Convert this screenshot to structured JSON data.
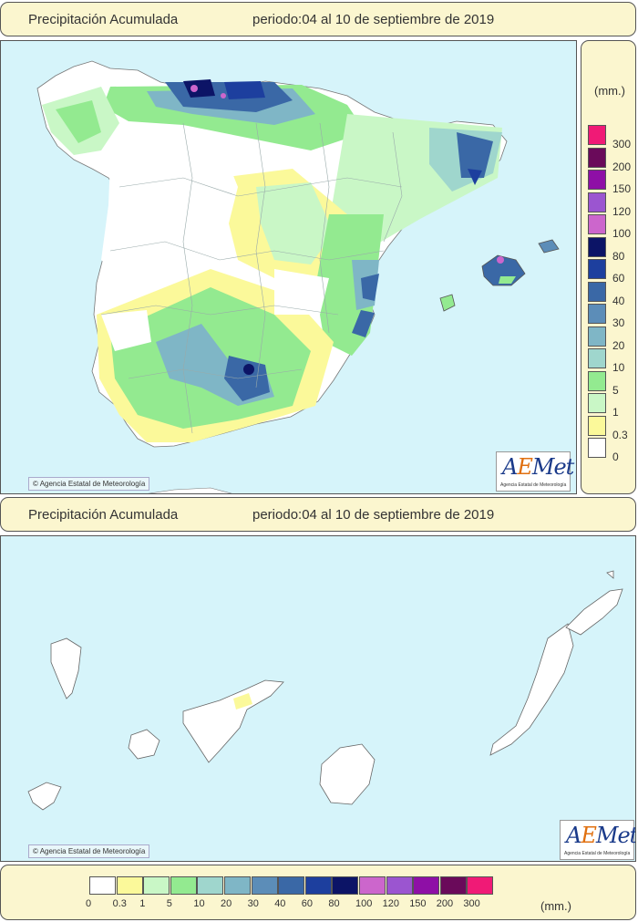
{
  "top_panel": {
    "title": "Precipitación Acumulada",
    "period": "periodo:04 al 10 de septiembre de 2019"
  },
  "bottom_panel": {
    "title": "Precipitación Acumulada",
    "period": "periodo:04 al 10 de septiembre de 2019"
  },
  "copyright": "Agencia Estatal de Meteorología",
  "logo": {
    "word": "AEMet",
    "subtitle": "Agencia Estatal de Meteorología"
  },
  "legend": {
    "unit": "(mm.)",
    "levels": [
      {
        "label": "0",
        "color": "#ffffff"
      },
      {
        "label": "0.3",
        "color": "#fbf99a"
      },
      {
        "label": "1",
        "color": "#c9f7c6"
      },
      {
        "label": "5",
        "color": "#93ea90"
      },
      {
        "label": "10",
        "color": "#9fd6cd"
      },
      {
        "label": "20",
        "color": "#7fb6c6"
      },
      {
        "label": "30",
        "color": "#5c8db8"
      },
      {
        "label": "40",
        "color": "#3a68a6"
      },
      {
        "label": "60",
        "color": "#1d3f9e"
      },
      {
        "label": "80",
        "color": "#0c1466"
      },
      {
        "label": "100",
        "color": "#cc66cc"
      },
      {
        "label": "120",
        "color": "#9b55d0"
      },
      {
        "label": "150",
        "color": "#8e0fa6"
      },
      {
        "label": "200",
        "color": "#6a0a5a"
      },
      {
        "label": "300",
        "color": "#f01a76"
      }
    ]
  }
}
